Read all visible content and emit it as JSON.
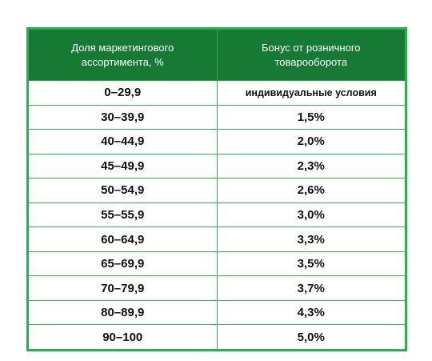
{
  "table": {
    "headers": [
      "Доля маркетингового ассортимента, %",
      "Бонус от розничного товарооборота"
    ],
    "rows": [
      [
        "0–29,9",
        "индивидуальные условия"
      ],
      [
        "30–39,9",
        "1,5%"
      ],
      [
        "40–44,9",
        "2,0%"
      ],
      [
        "45–49,9",
        "2,3%"
      ],
      [
        "50–54,9",
        "2,6%"
      ],
      [
        "55–55,9",
        "3,0%"
      ],
      [
        "60–64,9",
        "3,3%"
      ],
      [
        "65–69,9",
        "3,5%"
      ],
      [
        "70–79,9",
        "3,7%"
      ],
      [
        "80–89,9",
        "4,3%"
      ],
      [
        "90–100",
        "5,0%"
      ]
    ]
  },
  "colors": {
    "header_background": "#167a34",
    "border_green": "#25b24a"
  }
}
